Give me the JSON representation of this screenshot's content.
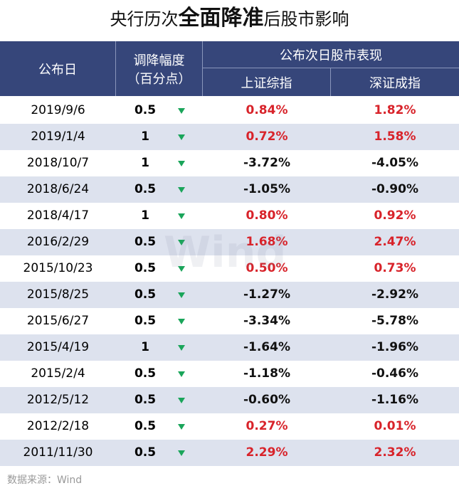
{
  "title": {
    "before": "央行历次",
    "emphasis": "全面降准",
    "after": "后股市影响"
  },
  "header": {
    "date": "公布日",
    "cut_line1": "调降幅度",
    "cut_line2": "（百分点）",
    "group": "公布次日股市表现",
    "sh": "上证综指",
    "sz": "深证成指"
  },
  "rows": [
    [
      "2019/9/6",
      "0.5",
      "0.84%",
      "1.82%"
    ],
    [
      "2019/1/4",
      "1",
      "0.72%",
      "1.58%"
    ],
    [
      "2018/10/7",
      "1",
      "-3.72%",
      "-4.05%"
    ],
    [
      "2018/6/24",
      "0.5",
      "-1.05%",
      "-0.90%"
    ],
    [
      "2018/4/17",
      "1",
      "0.80%",
      "0.92%"
    ],
    [
      "2016/2/29",
      "0.5",
      "1.68%",
      "2.47%"
    ],
    [
      "2015/10/23",
      "0.5",
      "0.50%",
      "0.73%"
    ],
    [
      "2015/8/25",
      "0.5",
      "-1.27%",
      "-2.92%"
    ],
    [
      "2015/6/27",
      "0.5",
      "-3.34%",
      "-5.78%"
    ],
    [
      "2015/4/19",
      "1",
      "-1.64%",
      "-1.96%"
    ],
    [
      "2015/2/4",
      "0.5",
      "-1.18%",
      "-0.46%"
    ],
    [
      "2012/5/12",
      "0.5",
      "-0.60%",
      "-1.16%"
    ],
    [
      "2012/2/18",
      "0.5",
      "0.27%",
      "0.01%"
    ],
    [
      "2011/11/30",
      "0.5",
      "2.29%",
      "2.32%"
    ]
  ],
  "watermark": "Wind",
  "source": "数据来源：Wind"
}
